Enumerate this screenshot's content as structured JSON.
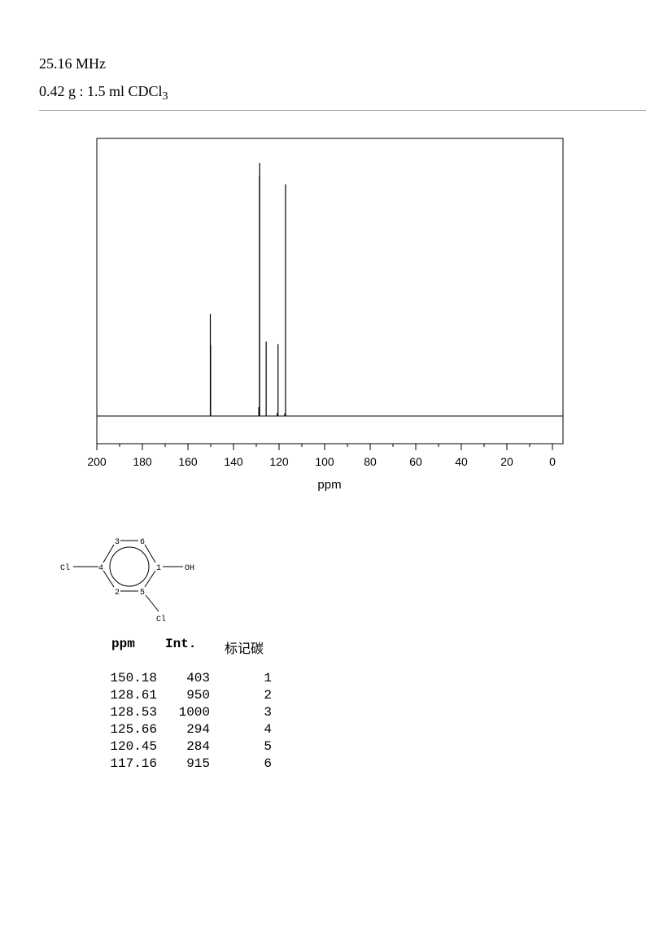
{
  "header": {
    "frequency": "25.16 MHz",
    "sample_main": "0.42 g : 1.5 ml CDCl",
    "sample_sub": "3"
  },
  "chart_data": {
    "type": "line",
    "xlabel": "ppm",
    "xlim": [
      200,
      0
    ],
    "x_ticks": [
      "200",
      "180",
      "160",
      "140",
      "120",
      "100",
      "80",
      "60",
      "40",
      "20",
      "0"
    ],
    "peaks": [
      {
        "ppm": 150.18,
        "intensity": 403
      },
      {
        "ppm": 150.05,
        "intensity": 280
      },
      {
        "ppm": 128.61,
        "intensity": 950
      },
      {
        "ppm": 128.53,
        "intensity": 1000
      },
      {
        "ppm": 125.66,
        "intensity": 294
      },
      {
        "ppm": 120.45,
        "intensity": 284
      },
      {
        "ppm": 117.16,
        "intensity": 915
      },
      {
        "ppm": 128.9,
        "intensity": 35
      },
      {
        "ppm": 120.8,
        "intensity": 12
      },
      {
        "ppm": 117.5,
        "intensity": 10
      }
    ],
    "ymax": 1000
  },
  "molecule": {
    "atoms": {
      "c1": "1",
      "c2": "2",
      "c3": "3",
      "c4": "4",
      "c5": "5",
      "c6": "6",
      "cl4": "Cl",
      "cl5": "Cl",
      "oh": "OH"
    }
  },
  "table": {
    "headers": {
      "ppm": "ppm",
      "int": "Int.",
      "carbon": "标记碳"
    },
    "rows": [
      {
        "ppm": "150.18",
        "int": "403",
        "carbon": "1"
      },
      {
        "ppm": "128.61",
        "int": "950",
        "carbon": "2"
      },
      {
        "ppm": "128.53",
        "int": "1000",
        "carbon": "3"
      },
      {
        "ppm": "125.66",
        "int": "294",
        "carbon": "4"
      },
      {
        "ppm": "120.45",
        "int": "284",
        "carbon": "5"
      },
      {
        "ppm": "117.16",
        "int": "915",
        "carbon": "6"
      }
    ]
  }
}
